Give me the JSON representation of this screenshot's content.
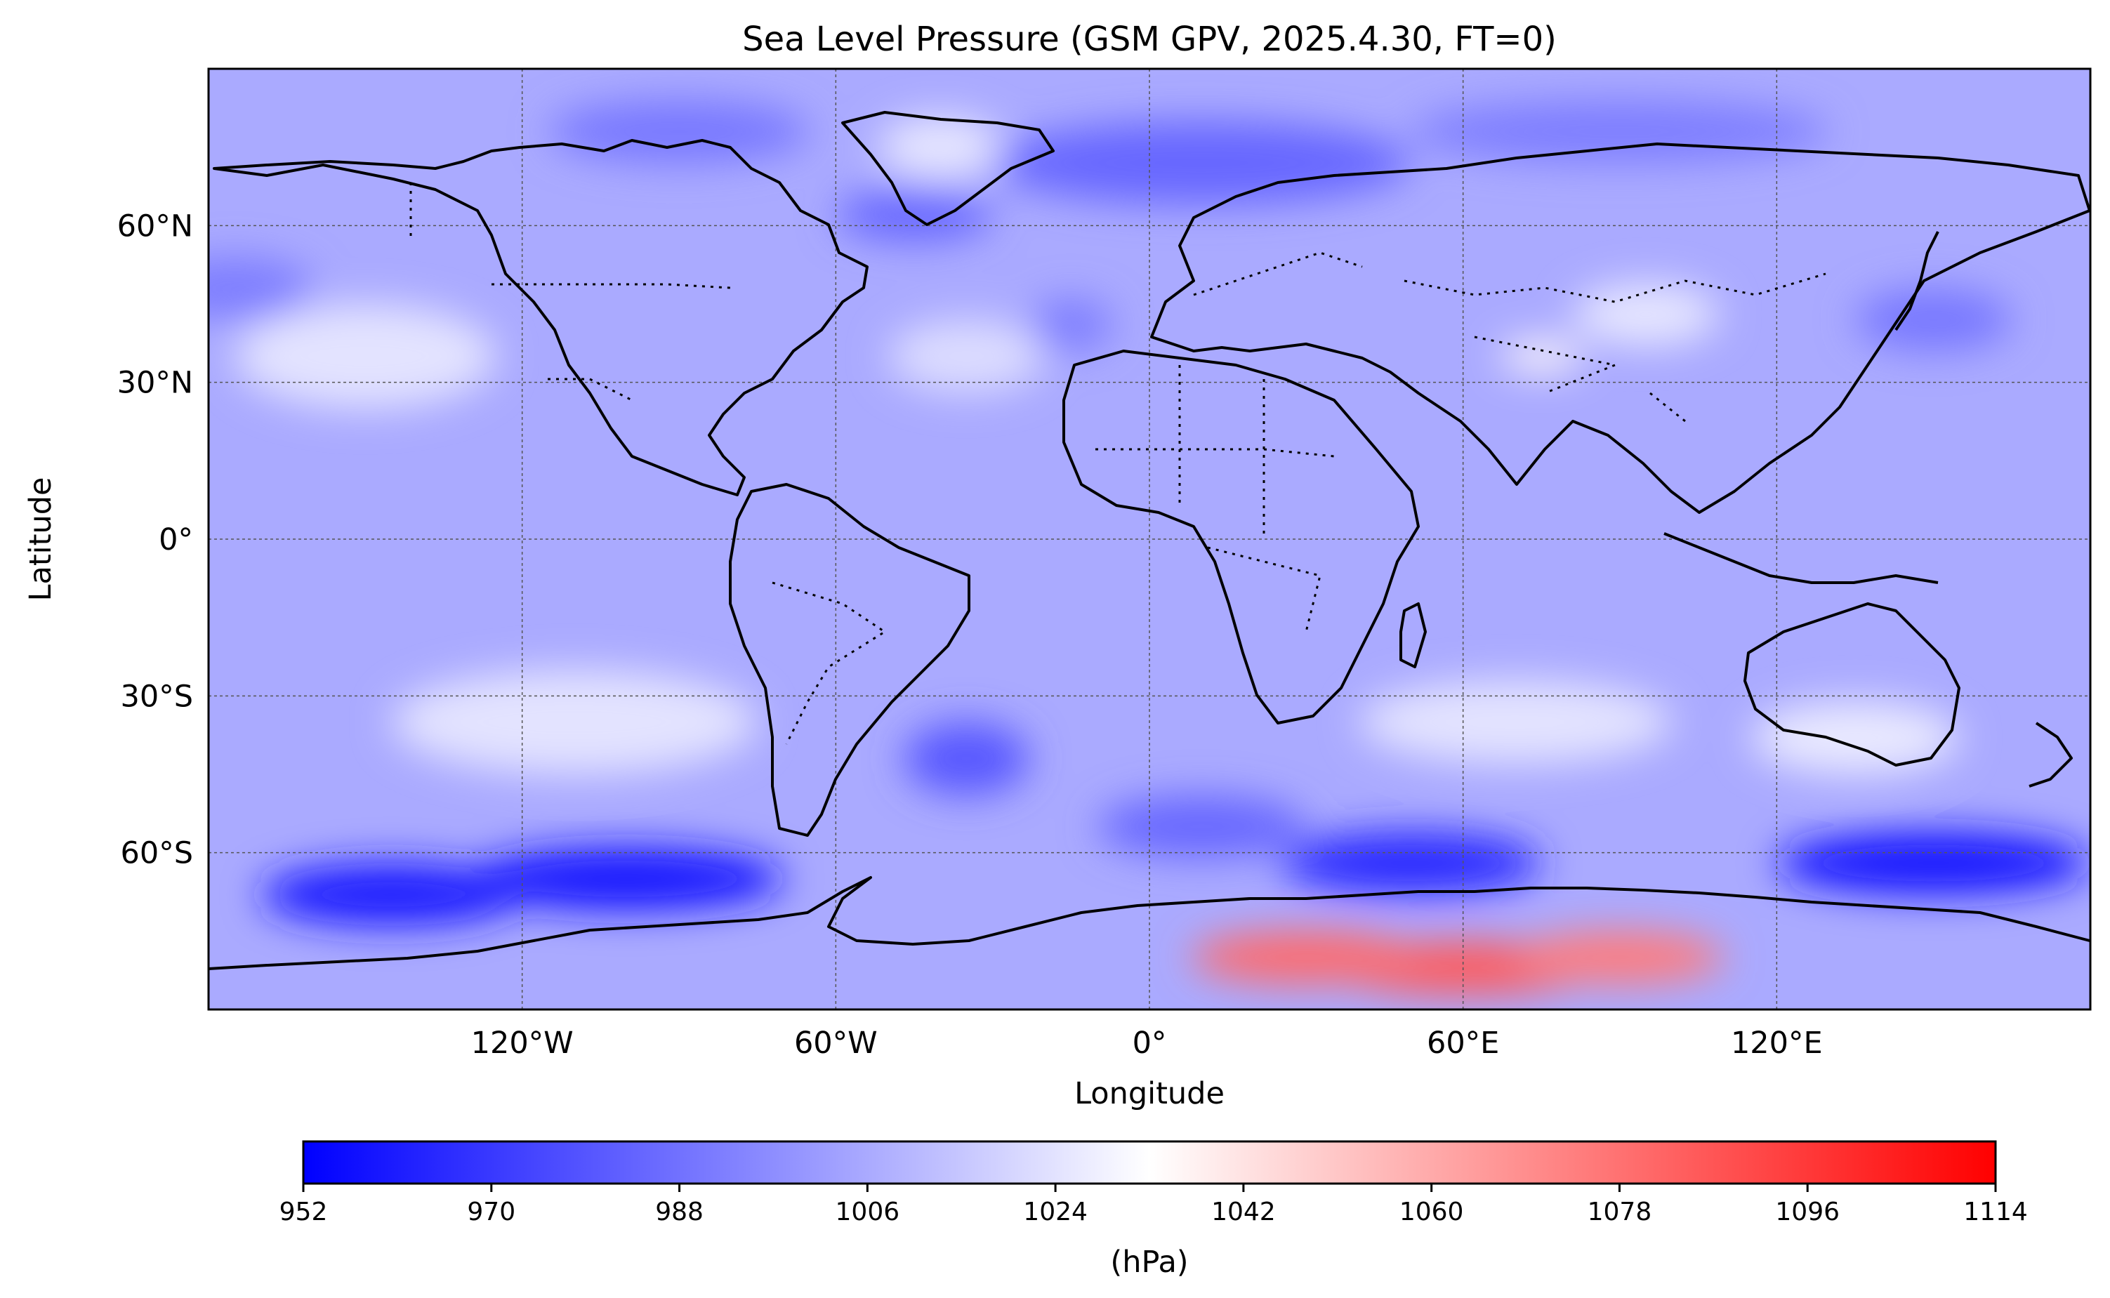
{
  "title": "Sea Level Pressure (GSM GPV, 2025.4.30, FT=0)",
  "xlabel": "Longitude",
  "ylabel": "Latitude",
  "colorbar": {
    "label": "(hPa)",
    "ticks": [
      "952",
      "970",
      "988",
      "1006",
      "1024",
      "1042",
      "1060",
      "1078",
      "1096",
      "1114"
    ],
    "min": 952,
    "max": 1114,
    "colors": {
      "low": "#0000ff",
      "mid": "#ffffff",
      "high": "#ff0000"
    }
  },
  "chart_data": {
    "type": "heatmap",
    "projection": "PlateCarree",
    "title": "Sea Level Pressure (GSM GPV, 2025.4.30, FT=0)",
    "xlabel": "Longitude",
    "ylabel": "Latitude",
    "xlim": [
      -180,
      180
    ],
    "ylim": [
      -90,
      90
    ],
    "grid": true,
    "x_ticks": [
      {
        "value": -120,
        "label": "120°W"
      },
      {
        "value": -60,
        "label": "60°W"
      },
      {
        "value": 0,
        "label": "0°"
      },
      {
        "value": 60,
        "label": "60°E"
      },
      {
        "value": 120,
        "label": "120°E"
      }
    ],
    "y_ticks": [
      {
        "value": 60,
        "label": "60°N"
      },
      {
        "value": 30,
        "label": "30°N"
      },
      {
        "value": 0,
        "label": "0°"
      },
      {
        "value": -30,
        "label": "30°S"
      },
      {
        "value": -60,
        "label": "60°S"
      }
    ],
    "units": "hPa",
    "background_hpa": 1006,
    "pressure_features": [
      {
        "lon": 60,
        "lat": -82,
        "rx": 26,
        "ry": 5,
        "hpa": 1085
      },
      {
        "lon": 30,
        "lat": -80,
        "rx": 22,
        "ry": 5,
        "hpa": 1080
      },
      {
        "lon": 90,
        "lat": -80,
        "rx": 20,
        "ry": 5,
        "hpa": 1075
      },
      {
        "lon": 75,
        "lat": 35,
        "rx": 8,
        "ry": 3,
        "hpa": 1035
      },
      {
        "lon": 95,
        "lat": 43,
        "rx": 14,
        "ry": 6,
        "hpa": 1025
      },
      {
        "lon": -40,
        "lat": 75,
        "rx": 12,
        "ry": 6,
        "hpa": 1025
      },
      {
        "lon": -150,
        "lat": 35,
        "rx": 25,
        "ry": 10,
        "hpa": 1024
      },
      {
        "lon": -35,
        "lat": 35,
        "rx": 15,
        "ry": 7,
        "hpa": 1022
      },
      {
        "lon": -110,
        "lat": -35,
        "rx": 35,
        "ry": 10,
        "hpa": 1024
      },
      {
        "lon": 70,
        "lat": -35,
        "rx": 30,
        "ry": 8,
        "hpa": 1024
      },
      {
        "lon": 135,
        "lat": -38,
        "rx": 20,
        "ry": 7,
        "hpa": 1026
      },
      {
        "lon": -145,
        "lat": -68,
        "rx": 25,
        "ry": 6,
        "hpa": 962
      },
      {
        "lon": -100,
        "lat": -65,
        "rx": 30,
        "ry": 6,
        "hpa": 960
      },
      {
        "lon": 50,
        "lat": -62,
        "rx": 25,
        "ry": 6,
        "hpa": 965
      },
      {
        "lon": 150,
        "lat": -62,
        "rx": 30,
        "ry": 6,
        "hpa": 960
      },
      {
        "lon": 10,
        "lat": -55,
        "rx": 20,
        "ry": 6,
        "hpa": 985
      },
      {
        "lon": -35,
        "lat": -42,
        "rx": 12,
        "ry": 7,
        "hpa": 980
      },
      {
        "lon": 10,
        "lat": 72,
        "rx": 40,
        "ry": 8,
        "hpa": 985
      },
      {
        "lon": -45,
        "lat": 62,
        "rx": 15,
        "ry": 5,
        "hpa": 985
      },
      {
        "lon": -90,
        "lat": 78,
        "rx": 25,
        "ry": 6,
        "hpa": 990
      },
      {
        "lon": -175,
        "lat": 48,
        "rx": 15,
        "ry": 6,
        "hpa": 992
      },
      {
        "lon": 150,
        "lat": 42,
        "rx": 15,
        "ry": 6,
        "hpa": 990
      },
      {
        "lon": -15,
        "lat": 41,
        "rx": 8,
        "ry": 5,
        "hpa": 992
      },
      {
        "lon": 90,
        "lat": 78,
        "rx": 40,
        "ry": 6,
        "hpa": 992
      }
    ]
  },
  "map_layers": [
    "coastline",
    "country-borders",
    "graticule"
  ]
}
